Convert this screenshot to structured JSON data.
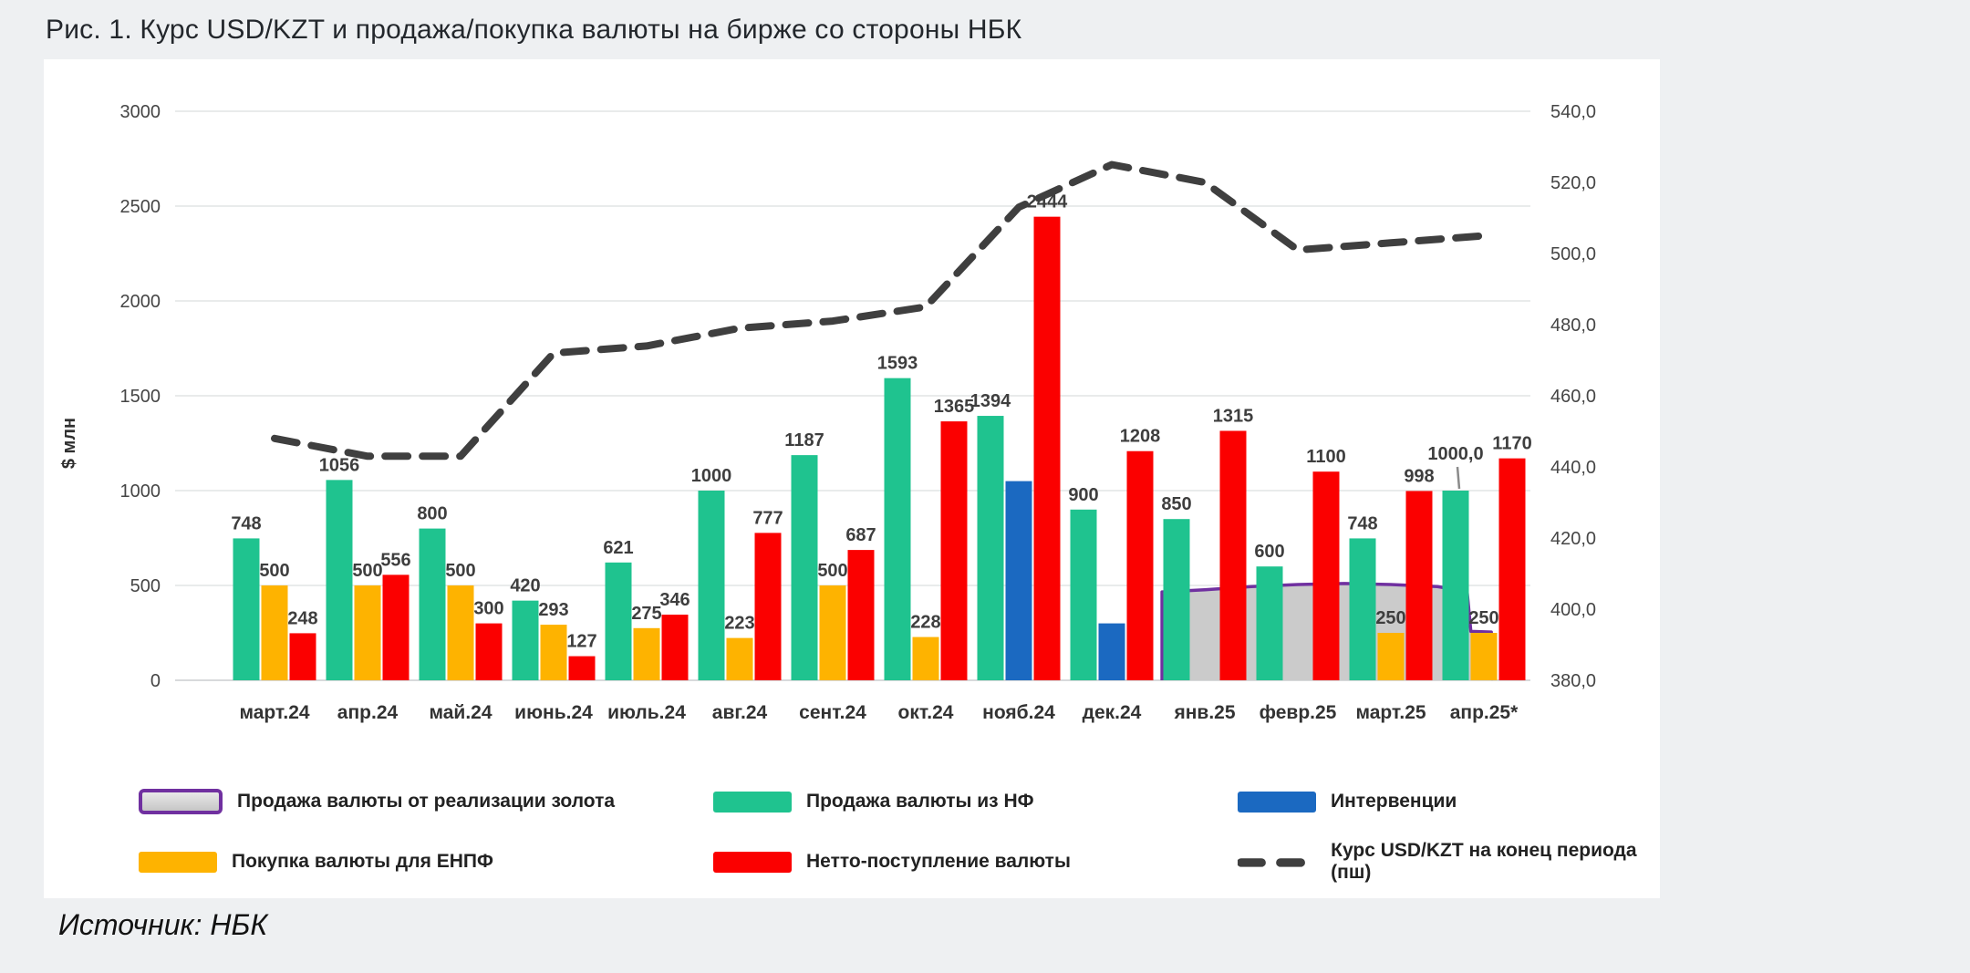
{
  "figure_title": "Рис. 1. Курс USD/KZT и продажа/покупка валюты на бирже со стороны НБК",
  "source_note": "Источник: НБК",
  "colors": {
    "green": "#1fc38f",
    "yellow": "#feb300",
    "red": "#fb0000",
    "blue": "#1b69c1",
    "purple": "#7030a0",
    "gray_area": "#cbcbcb",
    "dash_line": "#3f3f3f",
    "grid": "#e9ebeb",
    "card_bg": "#ffffff",
    "page_bg": "#eef0f2"
  },
  "legend": {
    "items": [
      {
        "id": "gold",
        "label": "Продажа валюты от реализации золота"
      },
      {
        "id": "nf",
        "label": "Продажа валюты из НФ"
      },
      {
        "id": "interventions",
        "label": "Интервенции"
      },
      {
        "id": "enpf",
        "label": "Покупка валюты для ЕНПФ"
      },
      {
        "id": "net",
        "label": "Нетто-поступление валюты"
      },
      {
        "id": "rate",
        "label": "Курс USD/KZT на конец периода (пш)"
      }
    ]
  },
  "chart_data": {
    "type": "bar",
    "subtype": "combo-bar-line-area",
    "categories": [
      "март.24",
      "апр.24",
      "май.24",
      "июнь.24",
      "июль.24",
      "авг.24",
      "сент.24",
      "окт.24",
      "нояб.24",
      "дек.24",
      "янв.25",
      "февр.25",
      "март.25",
      "апр.25*"
    ],
    "axes": {
      "left": {
        "title": "$ млн",
        "ticks": [
          0,
          500,
          1000,
          1500,
          2000,
          2500,
          3000
        ],
        "range": [
          0,
          3000
        ],
        "grid": true
      },
      "right": {
        "ticks": [
          "380,0",
          "400,0",
          "420,0",
          "440,0",
          "460,0",
          "480,0",
          "500,0",
          "520,0",
          "540,0"
        ],
        "range": [
          380,
          540
        ],
        "grid": false
      }
    },
    "series": [
      {
        "key": "gold",
        "name": "Продажа валюты от реализации золота",
        "type": "area",
        "axis": "left",
        "show_labels": false,
        "values": [
          null,
          null,
          null,
          null,
          null,
          null,
          null,
          null,
          null,
          null,
          470,
          505,
          508,
          460
        ],
        "profile": [
          [
            9.54,
            0
          ],
          [
            9.54,
            466
          ],
          [
            10,
            477
          ],
          [
            10.5,
            494
          ],
          [
            11,
            505
          ],
          [
            11.5,
            510
          ],
          [
            12,
            505
          ],
          [
            12.5,
            494
          ],
          [
            12.82,
            468
          ],
          [
            12.86,
            258
          ],
          [
            13.08,
            254
          ],
          [
            13.1,
            0
          ]
        ]
      },
      {
        "key": "nf",
        "name": "Продажа валюты из НФ",
        "type": "bar",
        "axis": "left",
        "slot": 0,
        "show_labels": true,
        "values": [
          748,
          1056,
          800,
          420,
          621,
          1000,
          1187,
          1593,
          1394,
          900,
          850,
          600,
          748,
          1000
        ],
        "labels": [
          "748",
          "1056",
          "800",
          "420",
          "621",
          "1000",
          "1187",
          "1593",
          "1394",
          "900",
          "850",
          "600",
          "748",
          "1000,0"
        ],
        "label_overrides": {
          "13": {
            "dy": -24,
            "leader": true
          }
        }
      },
      {
        "key": "interventions",
        "name": "Интервенции",
        "type": "bar",
        "axis": "left",
        "slot": 1,
        "show_labels": false,
        "values": [
          null,
          null,
          null,
          null,
          null,
          null,
          null,
          null,
          1050,
          300,
          null,
          null,
          null,
          null
        ]
      },
      {
        "key": "enpf",
        "name": "Покупка валюты для ЕНПФ",
        "type": "bar",
        "axis": "left",
        "slot": 1,
        "show_labels": true,
        "values": [
          500,
          500,
          500,
          293,
          275,
          223,
          500,
          228,
          null,
          null,
          null,
          null,
          250,
          250
        ],
        "labels": [
          "500",
          "500",
          "500",
          "293",
          "275",
          "223",
          "500",
          "228",
          "",
          "",
          "",
          "",
          "250",
          "250"
        ]
      },
      {
        "key": "net",
        "name": "Нетто-поступление валюты",
        "type": "bar",
        "axis": "left",
        "slot": 2,
        "show_labels": true,
        "values": [
          248,
          556,
          300,
          127,
          346,
          777,
          687,
          1365,
          2444,
          1208,
          1315,
          1100,
          998,
          1170
        ],
        "labels": [
          "248",
          "556",
          "300",
          "127",
          "346",
          "777",
          "687",
          "1365",
          "2444",
          "1208",
          "1315",
          "1100",
          "998",
          "1170"
        ]
      },
      {
        "key": "rate",
        "name": "Курс USD/KZT на конец периода (пш)",
        "type": "line",
        "axis": "right",
        "show_labels": false,
        "values": [
          448,
          443,
          443,
          472,
          474,
          479,
          481,
          485,
          513,
          525,
          520,
          501,
          503,
          505
        ]
      }
    ]
  }
}
